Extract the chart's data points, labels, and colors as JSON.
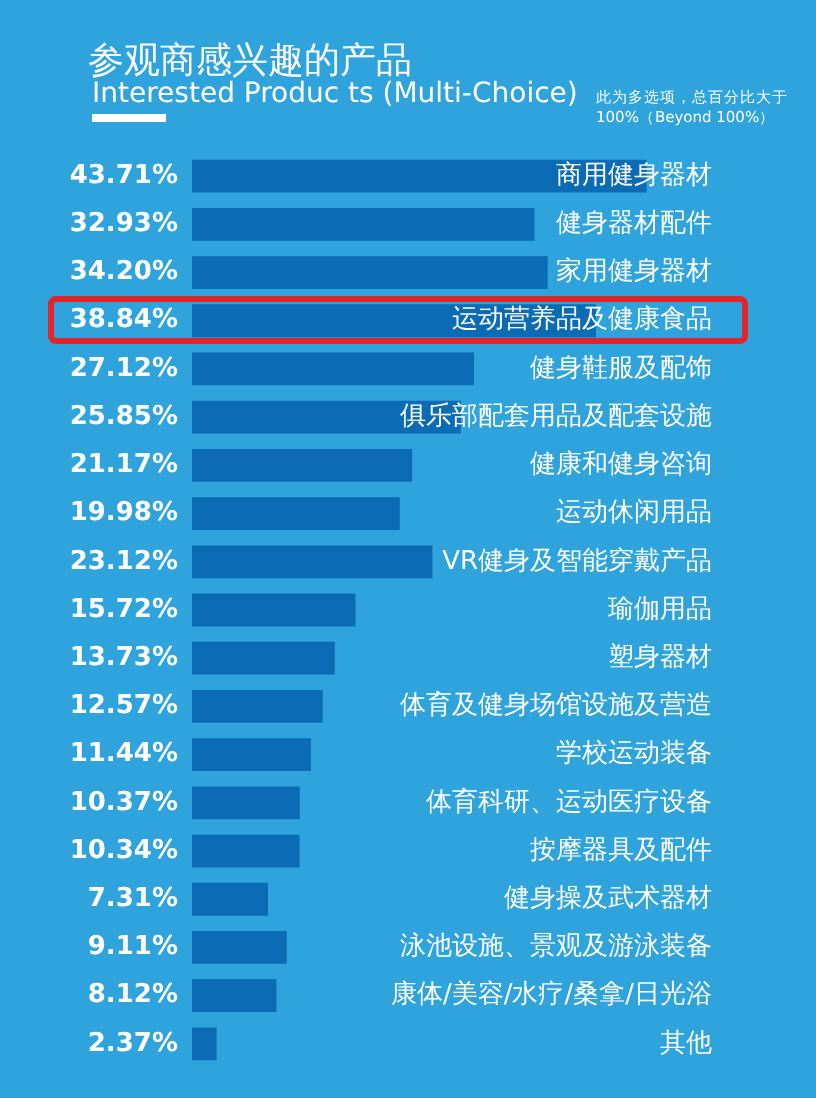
{
  "chart_data": {
    "type": "bar",
    "orientation": "horizontal",
    "title": "参观商感兴趣的产品",
    "subtitle": "Interested Produc ts (Multi-Choice)",
    "annotations": [
      "此为多选项，总百分比大于100%（Beyond 100%）"
    ],
    "categories": [
      "商用健身器材",
      "健身器材配件",
      "家用健身器材",
      "运动营养品及健康食品",
      "健身鞋服及配饰",
      "俱乐部配套用品及配套设施",
      "健康和健身咨询",
      "运动休闲用品",
      "VR健身及智能穿戴产品",
      "瑜伽用品",
      "塑身器材",
      "体育及健身场馆设施及营造",
      "学校运动装备",
      "体育科研、运动医疗设备",
      "按摩器具及配件",
      "健身操及武术器材",
      "泳池设施、景观及游泳装备",
      "康体/美容/水疗/桑拿/日光浴",
      "其他"
    ],
    "values": [
      43.71,
      32.93,
      34.2,
      38.84,
      27.12,
      25.85,
      21.17,
      19.98,
      23.12,
      15.72,
      13.73,
      12.57,
      11.44,
      10.37,
      10.34,
      7.31,
      9.11,
      8.12,
      2.37
    ],
    "value_labels": [
      "43.71%",
      "32.93%",
      "34.20%",
      "38.84%",
      "27.12%",
      "25.85%",
      "21.17%",
      "19.98%",
      "23.12%",
      "15.72%",
      "13.73%",
      "12.57%",
      "11.44%",
      "10.37%",
      "10.34%",
      "7.31%",
      "9.11%",
      "8.12%",
      "2.37%"
    ],
    "color": "#0b6cb5"
  }
}
